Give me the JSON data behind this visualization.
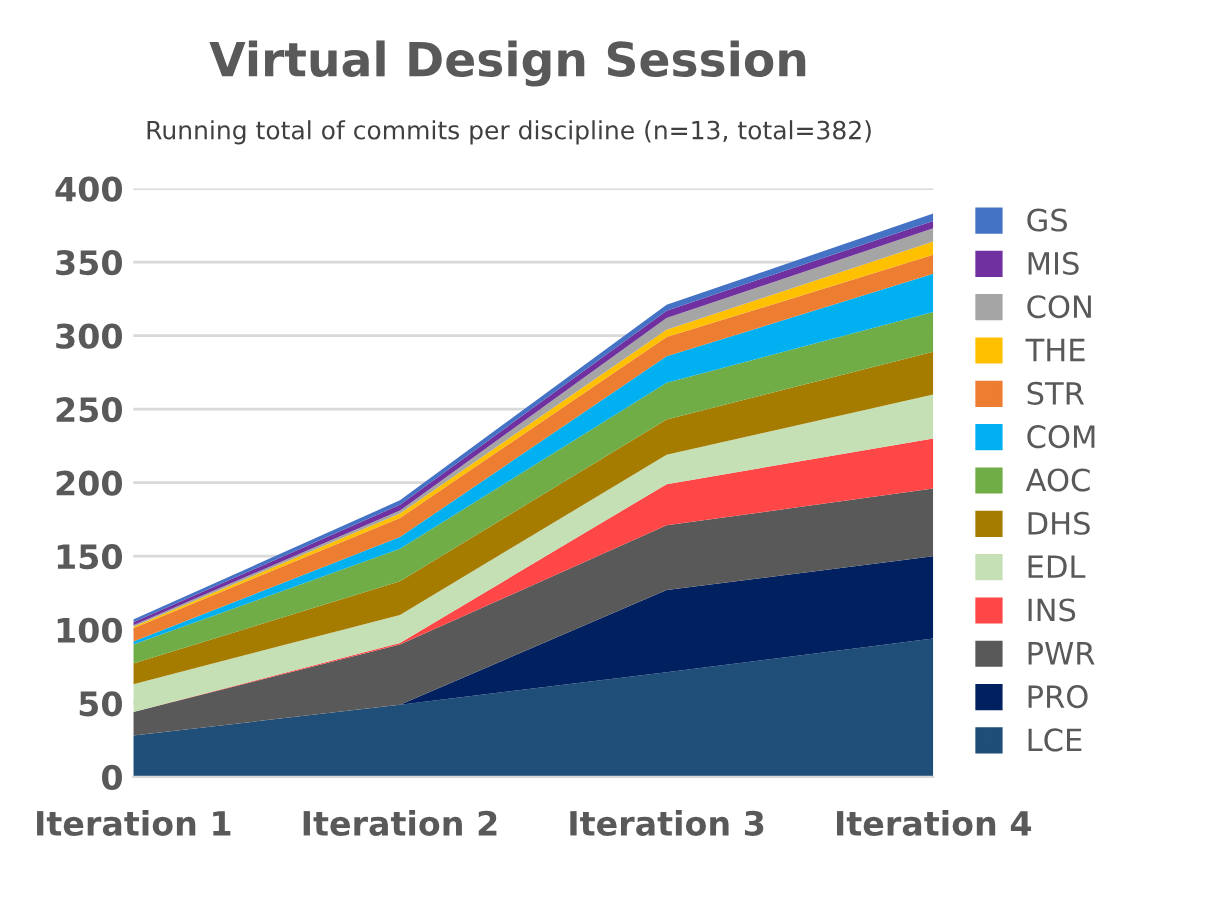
{
  "chart_data": {
    "type": "area",
    "title": "Virtual Design Session",
    "subtitle": "Running total of commits per discipline (n=13, total=382)",
    "categories": [
      "Iteration 1",
      "Iteration 2",
      "Iteration 3",
      "Iteration 4"
    ],
    "stacked": true,
    "ylim": [
      0,
      400
    ],
    "yticks": [
      0,
      50,
      100,
      150,
      200,
      250,
      300,
      350,
      400
    ],
    "grid": "y",
    "legend": "right",
    "series": [
      {
        "name": "LCE",
        "color": "#1f4e79",
        "values": [
          28,
          49,
          71,
          94
        ]
      },
      {
        "name": "PRO",
        "color": "#002060",
        "values": [
          0,
          0,
          56,
          56
        ]
      },
      {
        "name": "PWR",
        "color": "#595959",
        "values": [
          16,
          41,
          44,
          46
        ]
      },
      {
        "name": "INS",
        "color": "#ff4747",
        "values": [
          0,
          1,
          28,
          34
        ]
      },
      {
        "name": "EDL",
        "color": "#c5e0b4",
        "values": [
          19,
          19,
          20,
          30
        ]
      },
      {
        "name": "DHS",
        "color": "#a67c00",
        "values": [
          14,
          23,
          24,
          29
        ]
      },
      {
        "name": "AOC",
        "color": "#70ad47",
        "values": [
          13,
          22,
          25,
          27
        ]
      },
      {
        "name": "COM",
        "color": "#00b0f0",
        "values": [
          2,
          8,
          18,
          26
        ]
      },
      {
        "name": "STR",
        "color": "#ed7d31",
        "values": [
          9,
          13,
          13,
          13
        ]
      },
      {
        "name": "THE",
        "color": "#ffc000",
        "values": [
          1,
          3,
          5,
          9
        ]
      },
      {
        "name": "CON",
        "color": "#a5a5a5",
        "values": [
          1,
          2,
          8,
          9
        ]
      },
      {
        "name": "MIS",
        "color": "#7030a0",
        "values": [
          2,
          4,
          5,
          5
        ]
      },
      {
        "name": "GS",
        "color": "#4472c4",
        "values": [
          2,
          3,
          4,
          5
        ]
      }
    ]
  }
}
